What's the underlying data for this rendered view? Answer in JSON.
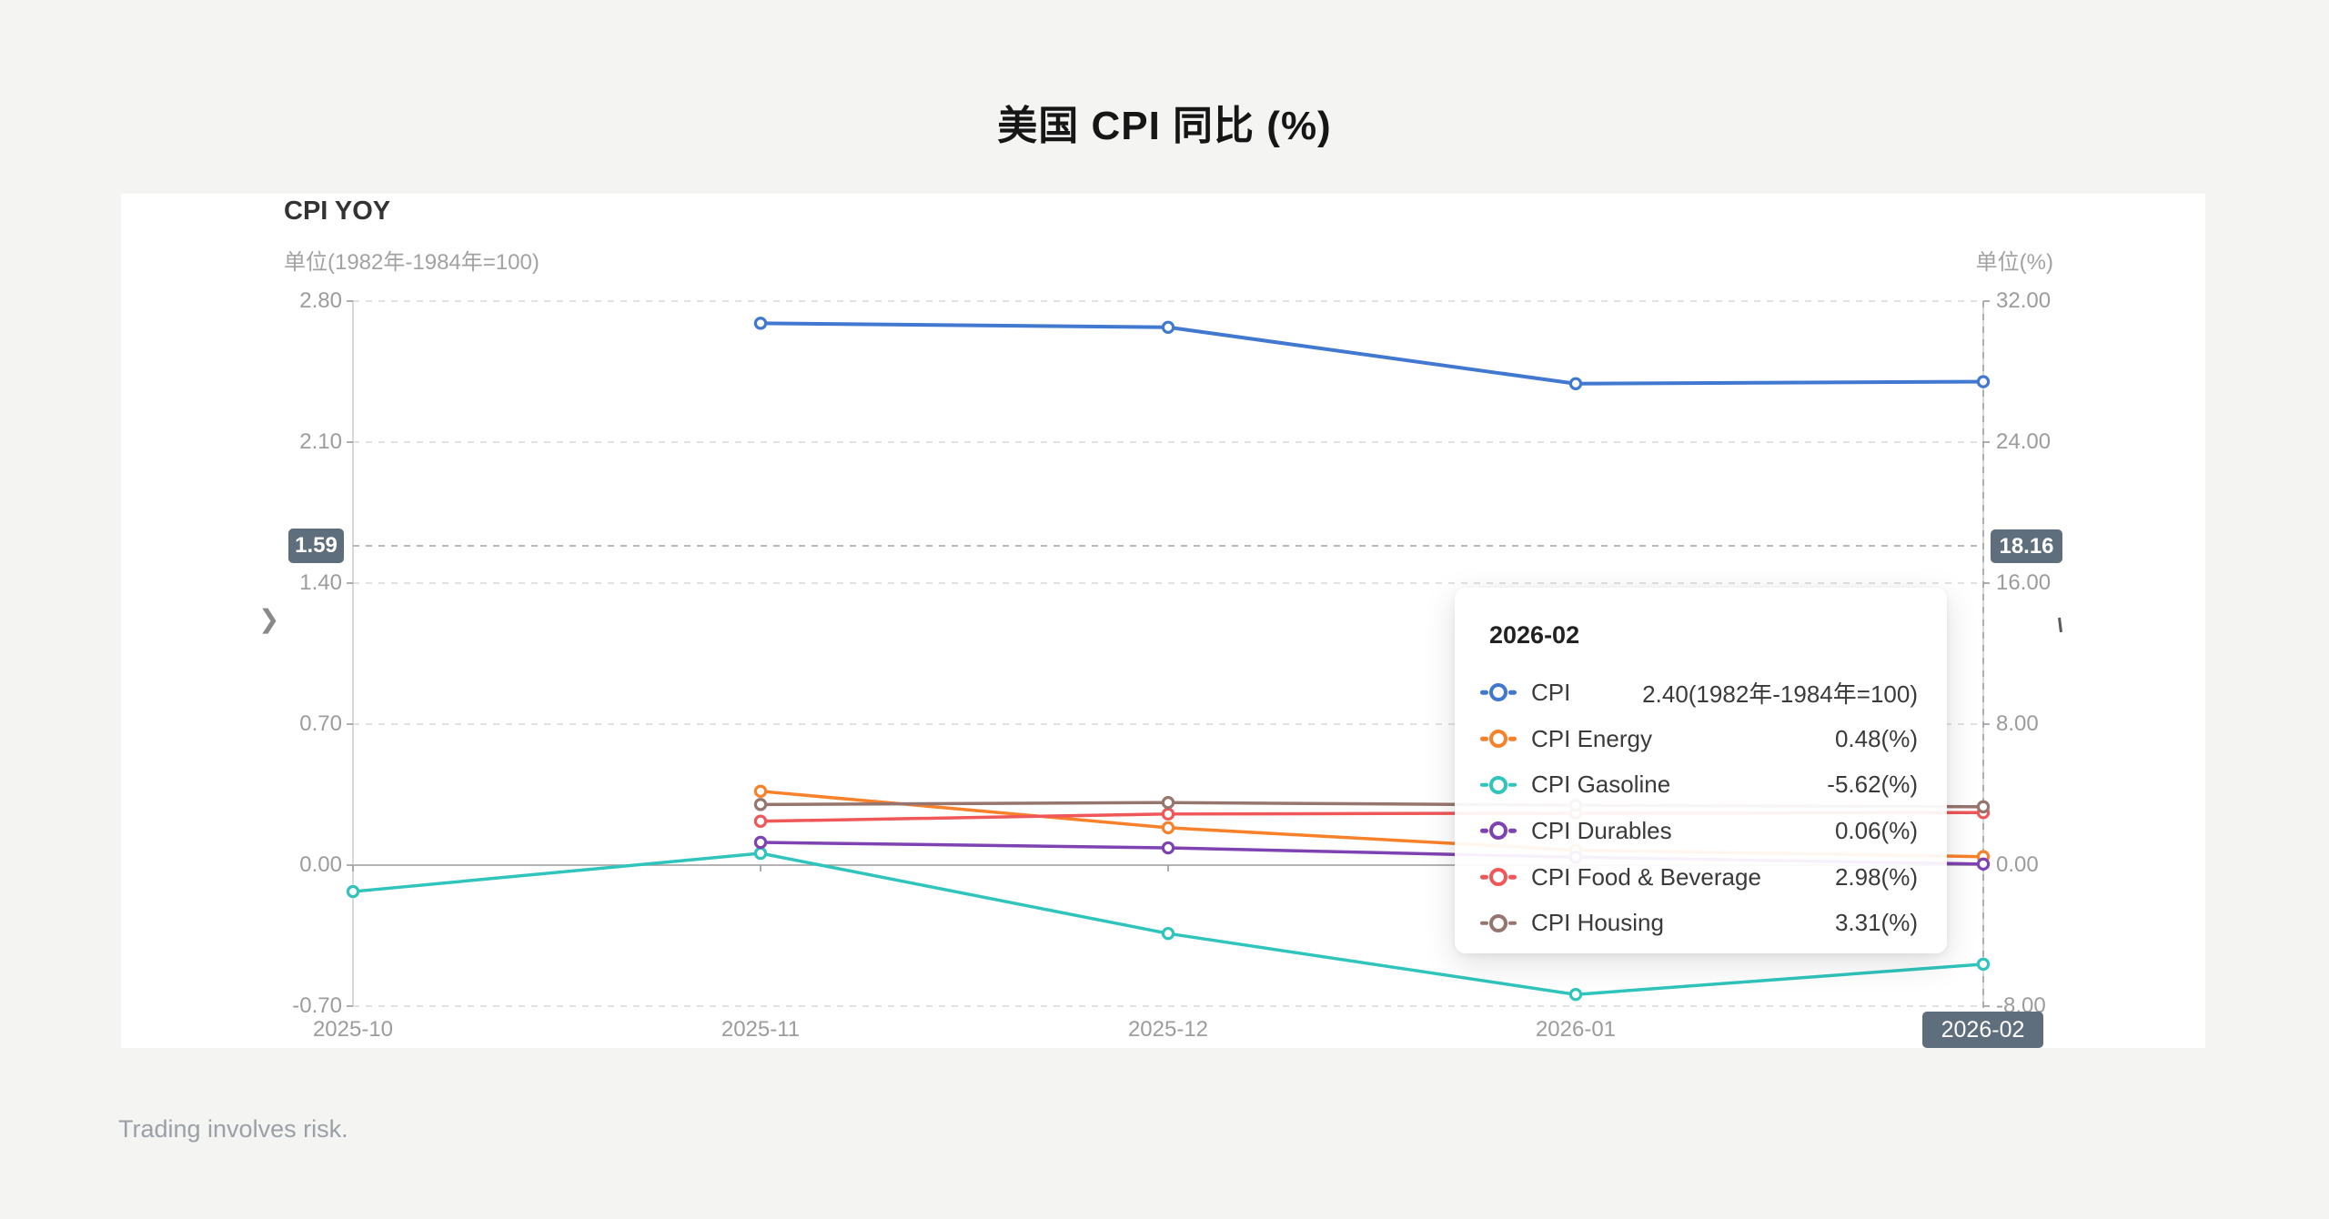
{
  "page": {
    "title": "美国 CPI 同比 (%)",
    "footer": "Trading involves risk."
  },
  "icons": {
    "chevron_right": "❯"
  },
  "chart_data": {
    "type": "line",
    "title": "CPI YOY",
    "categories": [
      "2025-10",
      "2025-11",
      "2025-12",
      "2026-01",
      "2026-02"
    ],
    "series": [
      {
        "name": "CPI",
        "axis": "left",
        "color": "#4178d0",
        "values": [
          null,
          2.69,
          2.67,
          2.39,
          2.4
        ]
      },
      {
        "name": "CPI Energy",
        "axis": "right",
        "color": "#f8812a",
        "values": [
          null,
          4.19,
          2.12,
          0.85,
          0.48
        ]
      },
      {
        "name": "CPI Gasoline",
        "axis": "right",
        "color": "#2fc4bc",
        "values": [
          -1.5,
          0.67,
          -3.88,
          -7.34,
          -5.62
        ]
      },
      {
        "name": "CPI Durables",
        "axis": "right",
        "color": "#7f42b2",
        "values": [
          null,
          1.29,
          0.98,
          0.45,
          0.06
        ]
      },
      {
        "name": "CPI Food & Beverage",
        "axis": "right",
        "color": "#ef5758",
        "values": [
          null,
          2.49,
          2.9,
          2.95,
          2.98
        ]
      },
      {
        "name": "CPI Housing",
        "axis": "right",
        "color": "#96756e",
        "values": [
          null,
          3.44,
          3.55,
          3.4,
          3.31
        ]
      }
    ],
    "left_axis": {
      "unit_label": "单位(1982年-1984年=100)",
      "tick_labels": [
        "2.80",
        "2.10",
        "1.40",
        "0.70",
        "0.00",
        "-0.70"
      ],
      "tick_values": [
        2.8,
        2.1,
        1.4,
        0.7,
        0,
        -0.7
      ],
      "range": [
        -0.7,
        2.8
      ]
    },
    "right_axis": {
      "unit_label": "单位(%)",
      "tick_labels": [
        "32.00",
        "24.00",
        "16.00",
        "8.00",
        "0.00",
        "-8.00"
      ],
      "tick_values": [
        32,
        24,
        16,
        8,
        0,
        -8
      ],
      "range": [
        -8,
        32
      ]
    },
    "grid": "horizontal dashed gridlines, solid zero line",
    "legend_position": "none",
    "crosshair": {
      "y_left_label": "1.59",
      "y_right_label": "18.16",
      "x_label": "2026-02",
      "left_value": 1.59,
      "right_value": 18.16
    }
  },
  "tooltip": {
    "title": "2026-02",
    "rows": [
      {
        "name": "CPI",
        "value": "2.40(1982年-1984年=100)",
        "color": "#4178d0"
      },
      {
        "name": "CPI Energy",
        "value": "0.48(%)",
        "color": "#f8812a"
      },
      {
        "name": "CPI Gasoline",
        "value": "-5.62(%)",
        "color": "#2fc4bc"
      },
      {
        "name": "CPI Durables",
        "value": "0.06(%)",
        "color": "#7f42b2"
      },
      {
        "name": "CPI Food & Beverage",
        "value": "2.98(%)",
        "color": "#ef5758"
      },
      {
        "name": "CPI Housing",
        "value": "3.31(%)",
        "color": "#96756e"
      }
    ]
  }
}
